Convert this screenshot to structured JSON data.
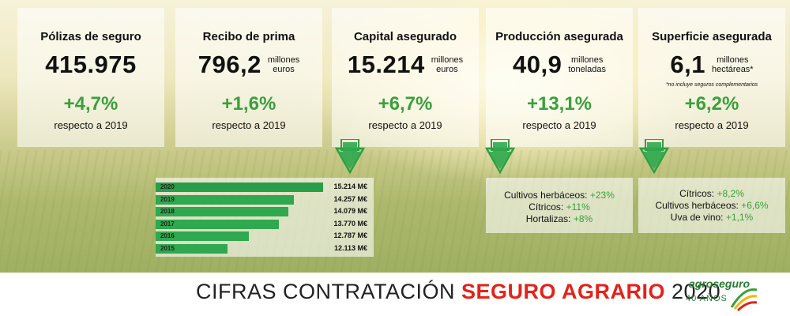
{
  "cards": [
    {
      "title": "Pólizas de seguro",
      "value": "415.975",
      "unit": "",
      "pct": "+4,7%",
      "resp": "respecto a 2019"
    },
    {
      "title": "Recibo de prima",
      "value": "796,2",
      "unit": "millones\neuros",
      "pct": "+1,6%",
      "resp": "respecto a 2019"
    },
    {
      "title": "Capital asegurado",
      "value": "15.214",
      "unit": "millones\neuros",
      "pct": "+6,7%",
      "resp": "respecto a 2019"
    },
    {
      "title": "Producción asegurada",
      "value": "40,9",
      "unit": "millones\ntoneladas",
      "pct": "+13,1%",
      "resp": "respecto a 2019"
    },
    {
      "title": "Superficie asegurada",
      "value": "6,1",
      "unit": "millones\nhectáreas*",
      "pct": "+6,2%",
      "resp": "respecto a 2019",
      "note": "*no incluye seguros complementarios"
    }
  ],
  "capital_history": [
    {
      "year": "2020",
      "label": "15.214 M€",
      "value": 15214
    },
    {
      "year": "2019",
      "label": "14.257 M€",
      "value": 14257
    },
    {
      "year": "2018",
      "label": "14.079 M€",
      "value": 14079
    },
    {
      "year": "2017",
      "label": "13.770 M€",
      "value": 13770
    },
    {
      "year": "2016",
      "label": "12.787 M€",
      "value": 12787
    },
    {
      "year": "2015",
      "label": "12.113 M€",
      "value": 12113
    }
  ],
  "produccion_breakdown": [
    {
      "name": "Cultivos herbáceos:",
      "pct": "+23%"
    },
    {
      "name": "Cítricos:",
      "pct": "+11%"
    },
    {
      "name": "Hortalizas:",
      "pct": "+8%"
    }
  ],
  "superficie_breakdown": [
    {
      "name": "Cítricos:",
      "pct": "+8,2%"
    },
    {
      "name": "Cultivos herbáceos:",
      "pct": "+6,6%"
    },
    {
      "name": "Uva de vino:",
      "pct": "+1,1%"
    }
  ],
  "footer": {
    "title_part1": "CIFRAS CONTRATACIÓN ",
    "title_part2": "SEGURO AGRARIO",
    "title_part3": " 2020",
    "logo_name": "agroseguro",
    "logo_years": "40 AÑOS"
  },
  "colors": {
    "green": "#3aa03c",
    "bar_green": "#2fa84f",
    "red": "#e2231a"
  },
  "icons": [
    "down-arrow-icon",
    "agroseguro-logo-icon"
  ]
}
